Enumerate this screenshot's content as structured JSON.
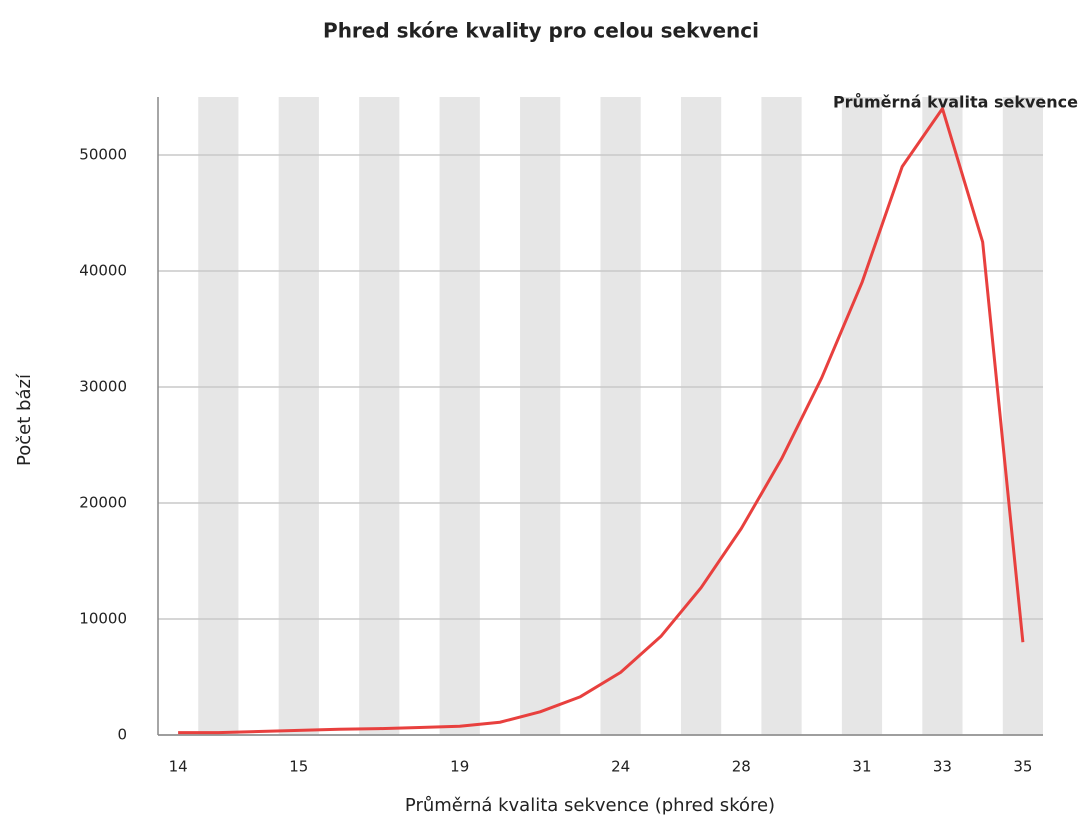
{
  "chart_data": {
    "type": "line",
    "title": "Phred skóre kvality pro celou sekvenci",
    "x_label": "Průměrná kvalita sekvence (phred skóre)",
    "y_label": "Počet bází",
    "categories": [
      14,
      null,
      null,
      15,
      null,
      null,
      null,
      19,
      null,
      null,
      null,
      24,
      null,
      null,
      28,
      null,
      null,
      31,
      null,
      33,
      null,
      35
    ],
    "series": [
      {
        "name": "Průměrná kvalita sekvence",
        "color": "#e8403e",
        "values": [
          200,
          200,
          300,
          400,
          500,
          550,
          650,
          750,
          1100,
          2000,
          3300,
          5400,
          8500,
          12700,
          17800,
          23800,
          30800,
          39000,
          49000,
          54000,
          42500,
          8000
        ]
      }
    ],
    "ylim": [
      0,
      55000
    ],
    "yticks": [
      0,
      10000,
      20000,
      30000,
      40000,
      50000
    ],
    "grid": true,
    "category_stripes": true,
    "legend": "top-right"
  }
}
